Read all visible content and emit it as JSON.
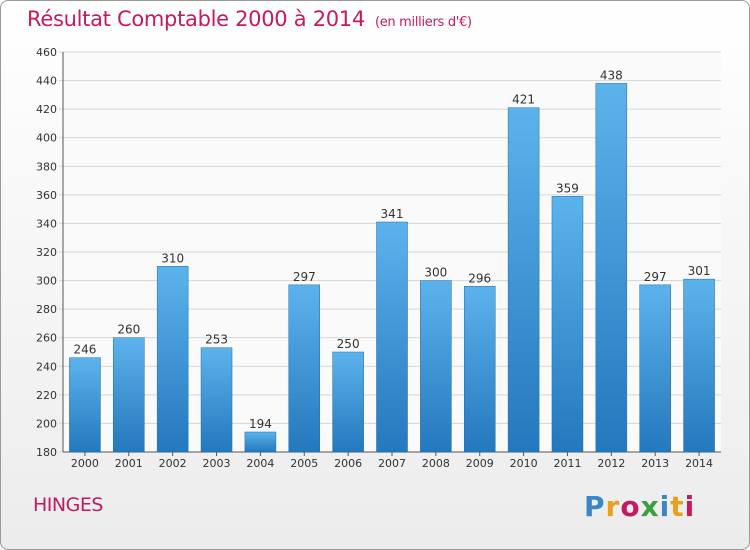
{
  "header": {
    "title": "Résultat Comptable 2000 à 2014",
    "subtitle": "(en milliers d'€)"
  },
  "footer": {
    "commune": "HINGES",
    "logo_text": "Proxiti",
    "logo_colors": [
      "#3a87c8",
      "#e8a020",
      "#c41a5f",
      "#3aa040",
      "#3a87c8",
      "#e8a020",
      "#c41a5f"
    ]
  },
  "colors": {
    "bar_light": "#5cb3ec",
    "bar_dark": "#2478bd",
    "title": "#c41a5f",
    "grid": "#d6d6d6"
  },
  "chart_data": {
    "type": "bar",
    "title": "Résultat Comptable 2000 à 2014",
    "categories": [
      "2000",
      "2001",
      "2002",
      "2003",
      "2004",
      "2005",
      "2006",
      "2007",
      "2008",
      "2009",
      "2010",
      "2011",
      "2012",
      "2013",
      "2014"
    ],
    "values": [
      246,
      260,
      310,
      253,
      194,
      297,
      250,
      341,
      300,
      296,
      421,
      359,
      438,
      297,
      301
    ],
    "ylim": [
      180,
      460
    ],
    "ytick_step": 20,
    "grid": true,
    "xlabel": "",
    "ylabel": ""
  }
}
